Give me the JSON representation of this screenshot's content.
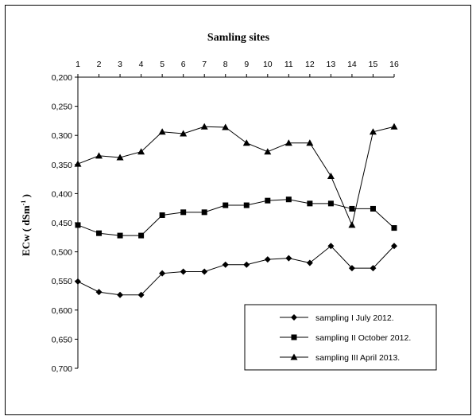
{
  "chart_data": {
    "type": "line",
    "title": "Samling sites",
    "xlabel": "",
    "ylabel_main": "ECw ( dSm",
    "ylabel_sup": "-1",
    "ylabel_close": " )",
    "x": [
      1,
      2,
      3,
      4,
      5,
      6,
      7,
      8,
      9,
      10,
      11,
      12,
      13,
      14,
      15,
      16
    ],
    "ylim": [
      0.2,
      0.7
    ],
    "y_inverted": true,
    "x_axis_position": "top",
    "yticks": [
      "0,200",
      "0,250",
      "0,300",
      "0,350",
      "0,400",
      "0,450",
      "0,500",
      "0,550",
      "0,600",
      "0,650",
      "0,700"
    ],
    "grid": false,
    "legend_position": "bottom-right",
    "series": [
      {
        "name": "sampling I July 2012.",
        "marker": "diamond",
        "values": [
          0.551,
          0.569,
          0.574,
          0.574,
          0.537,
          0.534,
          0.534,
          0.522,
          0.522,
          0.513,
          0.511,
          0.519,
          0.49,
          0.528,
          0.528,
          0.49
        ]
      },
      {
        "name": "sampling II October 2012.",
        "marker": "square",
        "values": [
          0.454,
          0.468,
          0.472,
          0.472,
          0.437,
          0.432,
          0.432,
          0.42,
          0.42,
          0.412,
          0.41,
          0.417,
          0.417,
          0.426,
          0.426,
          0.459
        ]
      },
      {
        "name": "sampling III April 2013.",
        "marker": "triangle",
        "values": [
          0.349,
          0.335,
          0.338,
          0.328,
          0.294,
          0.297,
          0.285,
          0.286,
          0.313,
          0.328,
          0.313,
          0.313,
          0.37,
          0.454,
          0.294,
          0.285
        ]
      }
    ]
  }
}
